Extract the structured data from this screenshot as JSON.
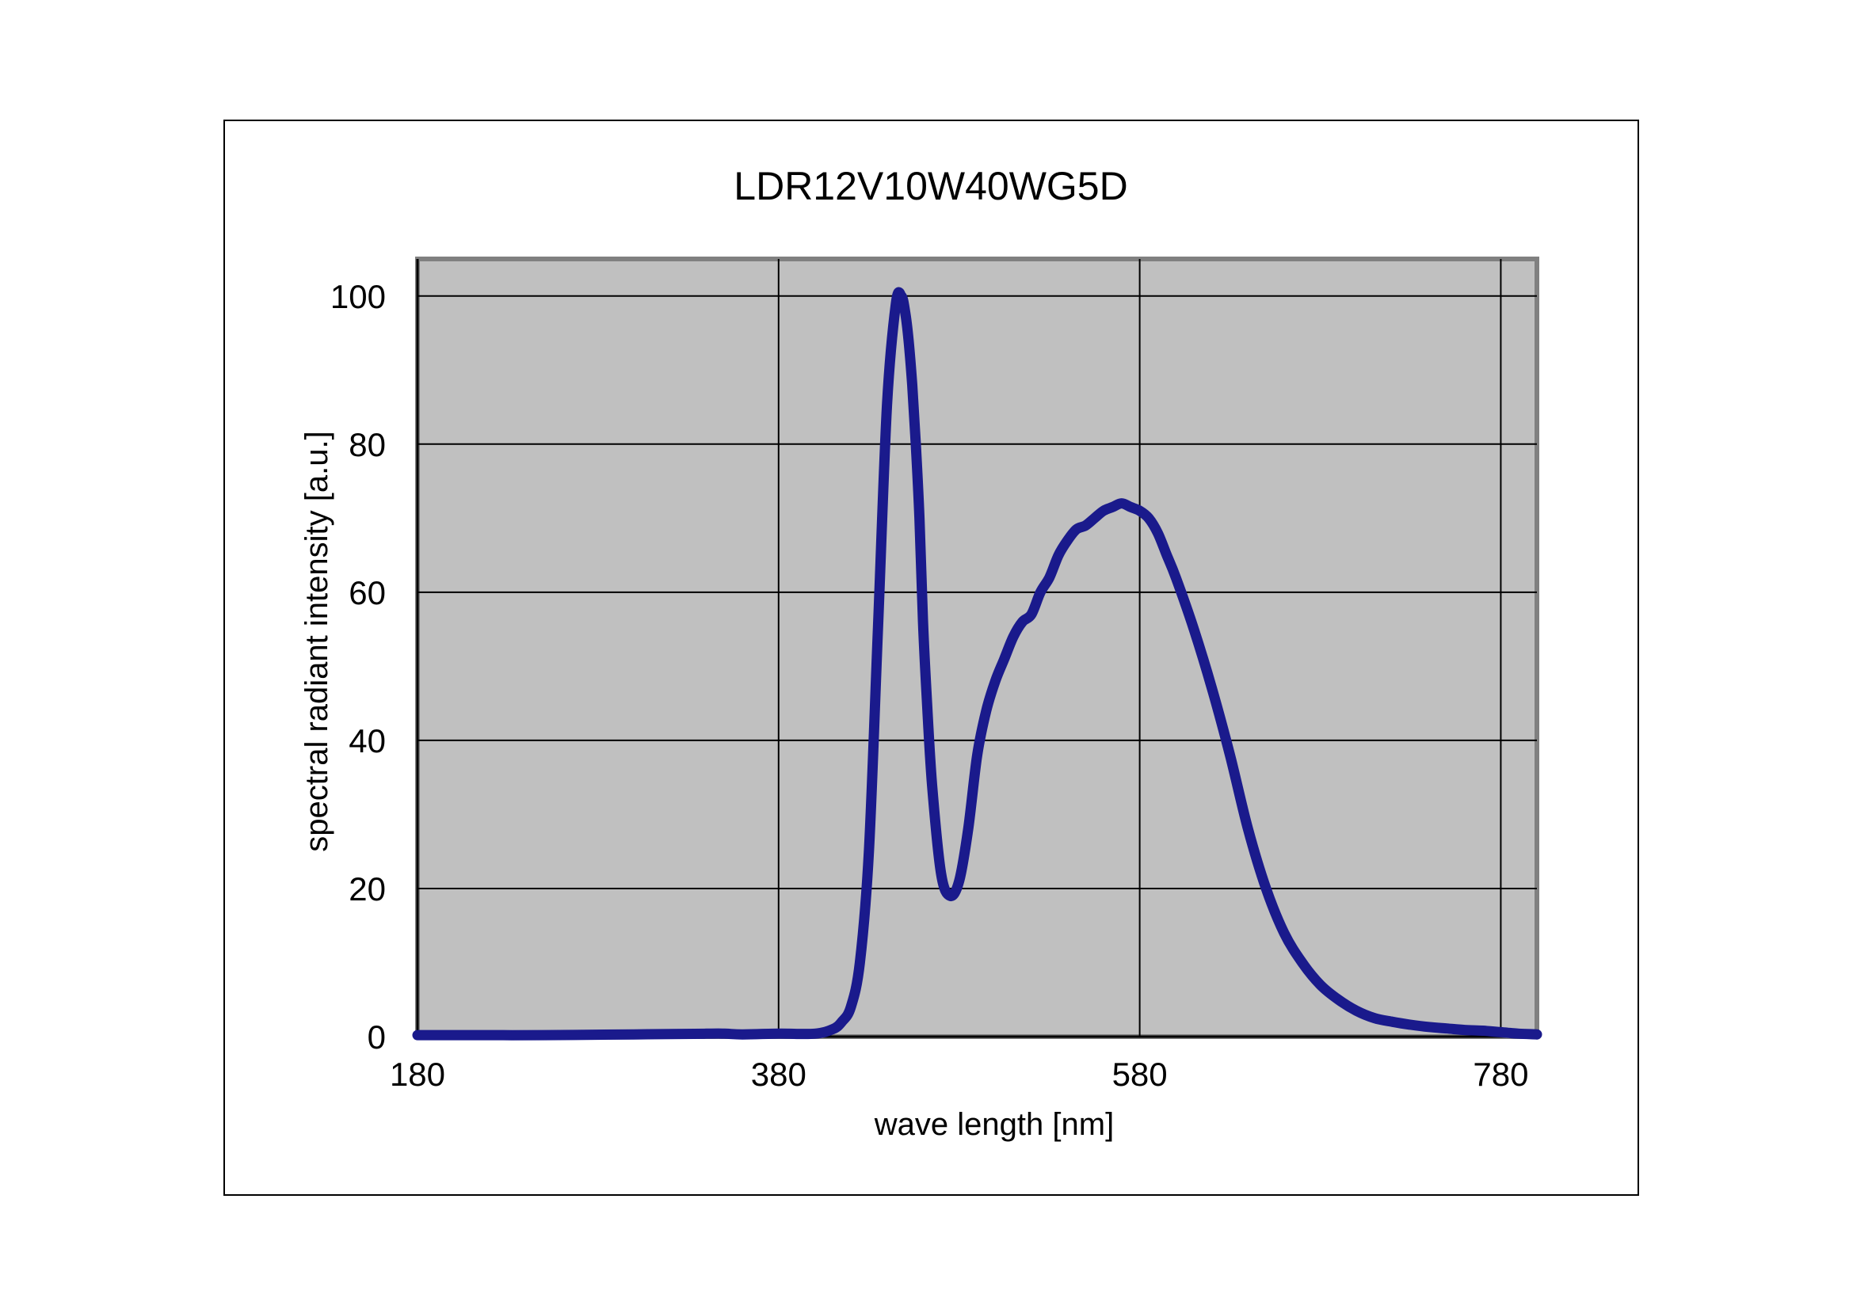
{
  "chart_data": {
    "type": "line",
    "title": "LDR12V10W40WG5D",
    "xlabel": "wave length [nm]",
    "ylabel": "spectral radiant intensity [a.u.]",
    "xlim": [
      180,
      800
    ],
    "ylim": [
      0,
      105
    ],
    "xticks": [
      180,
      380,
      580,
      780
    ],
    "yticks": [
      0,
      20,
      40,
      60,
      80,
      100
    ],
    "grid": true,
    "legend": "none",
    "colors": {
      "plot_bg": "#c0c0c0",
      "line": "#1a1a8c",
      "grid": "#000000"
    },
    "series": [
      {
        "x": [
          180,
          200,
          250,
          300,
          340,
          350,
          360,
          380,
          400,
          410,
          415,
          420,
          425,
          430,
          435,
          440,
          445,
          448,
          450,
          452,
          454,
          456,
          458,
          460,
          462,
          465,
          470,
          475,
          480,
          485,
          490,
          495,
          500,
          505,
          510,
          515,
          520,
          525,
          530,
          535,
          540,
          545,
          550,
          555,
          560,
          565,
          570,
          575,
          580,
          585,
          590,
          595,
          600,
          610,
          620,
          630,
          640,
          650,
          660,
          670,
          680,
          690,
          700,
          710,
          720,
          730,
          740,
          750,
          760,
          770,
          780,
          790,
          800
        ],
        "y": [
          0.2,
          0.2,
          0.2,
          0.3,
          0.4,
          0.4,
          0.3,
          0.4,
          0.4,
          1,
          2,
          4,
          10,
          25,
          55,
          85,
          99,
          100,
          98,
          94,
          88,
          80,
          70,
          56,
          46,
          34,
          22,
          19,
          21,
          28,
          38,
          44,
          48,
          51,
          54,
          56,
          57,
          60,
          62,
          65,
          67,
          68.5,
          69,
          70,
          71,
          71.5,
          72,
          71.5,
          71,
          70,
          68,
          65,
          62,
          55,
          47,
          38,
          28,
          20,
          14,
          10,
          7,
          5,
          3.5,
          2.5,
          2,
          1.6,
          1.3,
          1.1,
          0.9,
          0.8,
          0.6,
          0.4,
          0.3
        ]
      }
    ]
  }
}
